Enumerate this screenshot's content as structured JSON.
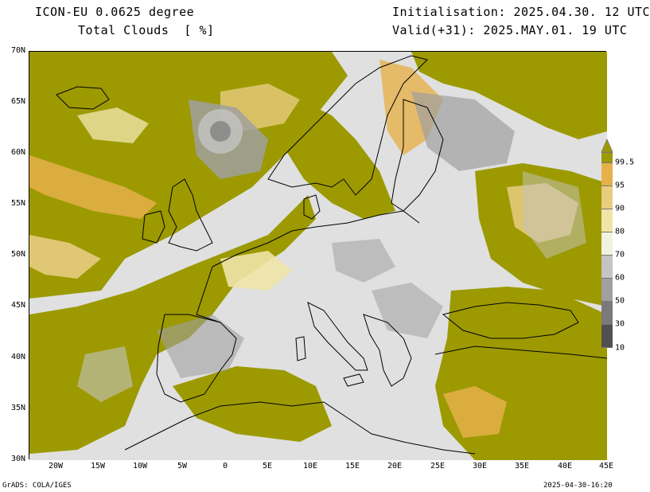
{
  "header": {
    "title_line1": "ICON-EU 0.0625 degree",
    "title_line2": "Total Clouds  [ %]",
    "init_line": "Initialisation: 2025.04.30. 12 UTC",
    "valid_line": "Valid(+31): 2025.MAY.01. 19 UTC"
  },
  "axes": {
    "lat_labels": [
      "70N",
      "65N",
      "60N",
      "55N",
      "50N",
      "45N",
      "40N",
      "35N",
      "30N"
    ],
    "lon_labels": [
      "20W",
      "15W",
      "10W",
      "5W",
      "0",
      "5E",
      "10E",
      "15E",
      "20E",
      "25E",
      "30E",
      "35E",
      "40E",
      "45E"
    ]
  },
  "colorbar": {
    "levels": [
      "10",
      "30",
      "50",
      "60",
      "70",
      "80",
      "90",
      "95",
      "99.5"
    ],
    "colors": [
      "#505050",
      "#7a7a7a",
      "#a0a0a0",
      "#c4c4c4",
      "#f2f2e0",
      "#f0e4a8",
      "#e8cc80",
      "#e6b04a",
      "#9c9a00"
    ]
  },
  "map": {
    "extent": {
      "lon_min": -23,
      "lon_max": 45,
      "lat_min": 30,
      "lat_max": 70
    },
    "colors": {
      "ocean_clear": "#e0e0e0",
      "overcast": "#9c9a00",
      "coast": "#000000"
    }
  },
  "footer": {
    "left": "GrADS: COLA/IGES",
    "right": "2025-04-30-16:20"
  }
}
